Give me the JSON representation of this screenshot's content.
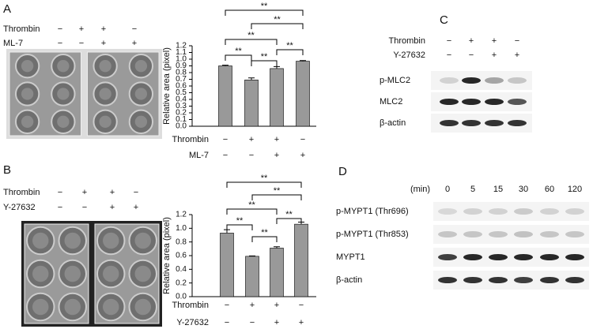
{
  "panels": {
    "a": "A",
    "b": "B",
    "c": "C",
    "d": "D"
  },
  "photo_a": {
    "rows": [
      {
        "name": "Thrombin",
        "signs": [
          "−",
          "+",
          "+",
          "−"
        ]
      },
      {
        "name": "ML-7",
        "signs": [
          "−",
          "−",
          "+",
          "+"
        ]
      }
    ]
  },
  "photo_b": {
    "rows": [
      {
        "name": "Thrombin",
        "signs": [
          "−",
          "+",
          "+",
          "−"
        ]
      },
      {
        "name": "Y-27632",
        "signs": [
          "−",
          "−",
          "+",
          "+"
        ]
      }
    ]
  },
  "chart_data": [
    {
      "type": "bar",
      "y_label": "Relative area (pixel)",
      "values": [
        0.9,
        0.69,
        0.86,
        0.97
      ],
      "errors": [
        0.01,
        0.03,
        0.03,
        0.01
      ],
      "color": "#999999",
      "ylim": [
        0,
        1.2
      ],
      "yticks": [
        {
          "value": 0,
          "label": "0.0"
        },
        {
          "value": 0.1,
          "label": "0.1"
        },
        {
          "value": 0.2,
          "label": "0.2"
        },
        {
          "value": 0.3,
          "label": "0.3"
        },
        {
          "value": 0.4,
          "label": "0.4"
        },
        {
          "value": 0.5,
          "label": "0.5"
        },
        {
          "value": 0.6,
          "label": "0.6"
        },
        {
          "value": 0.7,
          "label": "0.7"
        },
        {
          "value": 0.8,
          "label": "0.8"
        },
        {
          "value": 0.9,
          "label": "0.9"
        },
        {
          "value": 1,
          "label": "1.0"
        },
        {
          "value": 1.1,
          "label": "1.1"
        },
        {
          "value": 1.2,
          "label": "1.2"
        }
      ],
      "conditions": [
        {
          "name": "Thrombin",
          "signs": [
            "−",
            "+",
            "+",
            "−"
          ]
        },
        {
          "name": "ML-7",
          "signs": [
            "−",
            "−",
            "+",
            "+"
          ]
        }
      ],
      "brackets": [
        {
          "between": [
            0,
            3
          ],
          "label": "**"
        },
        {
          "between": [
            1,
            3
          ],
          "label": "**"
        },
        {
          "between": [
            0,
            2
          ],
          "label": "**"
        },
        {
          "between": [
            2,
            3
          ],
          "label": "**"
        },
        {
          "between": [
            0,
            1
          ],
          "label": "**"
        },
        {
          "between": [
            1,
            2
          ],
          "label": "**"
        }
      ]
    },
    {
      "type": "bar",
      "y_label": "Relative area (pixel)",
      "values": [
        0.93,
        0.59,
        0.71,
        1.06
      ],
      "errors": [
        0.05,
        0.005,
        0.02,
        0.03
      ],
      "color": "#999999",
      "ylim": [
        0,
        1.2
      ],
      "yticks": [
        {
          "value": 0,
          "label": "0.0"
        },
        {
          "value": 0.2,
          "label": "0.2"
        },
        {
          "value": 0.4,
          "label": "0.4"
        },
        {
          "value": 0.6,
          "label": "0.6"
        },
        {
          "value": 0.8,
          "label": "0.8"
        },
        {
          "value": 1,
          "label": "1.0"
        },
        {
          "value": 1.2,
          "label": "1.2"
        }
      ],
      "conditions": [
        {
          "name": "Thrombin",
          "signs": [
            "−",
            "+",
            "+",
            "−"
          ]
        },
        {
          "name": "Y-27632",
          "signs": [
            "−",
            "−",
            "+",
            "+"
          ]
        }
      ],
      "brackets": [
        {
          "between": [
            0,
            3
          ],
          "label": "**"
        },
        {
          "between": [
            1,
            3
          ],
          "label": "**"
        },
        {
          "between": [
            0,
            2
          ],
          "label": "**"
        },
        {
          "between": [
            2,
            3
          ],
          "label": "**"
        },
        {
          "between": [
            0,
            1
          ],
          "label": "**"
        },
        {
          "between": [
            1,
            2
          ],
          "label": "**"
        }
      ]
    }
  ],
  "blot_c": {
    "conditions": [
      {
        "name": "Thrombin",
        "signs": [
          "−",
          "+",
          "+",
          "−"
        ]
      },
      {
        "name": "Y-27632",
        "signs": [
          "−",
          "−",
          "+",
          "+"
        ]
      }
    ],
    "rows": [
      "p-MLC2",
      "MLC2",
      "β-actin"
    ]
  },
  "blot_d": {
    "unit": "(min)",
    "times": [
      "0",
      "5",
      "15",
      "30",
      "60",
      "120"
    ],
    "rows": [
      "p-MYPT1 (Thr696)",
      "p-MYPT1 (Thr853)",
      "MYPT1",
      "β-actin"
    ]
  }
}
